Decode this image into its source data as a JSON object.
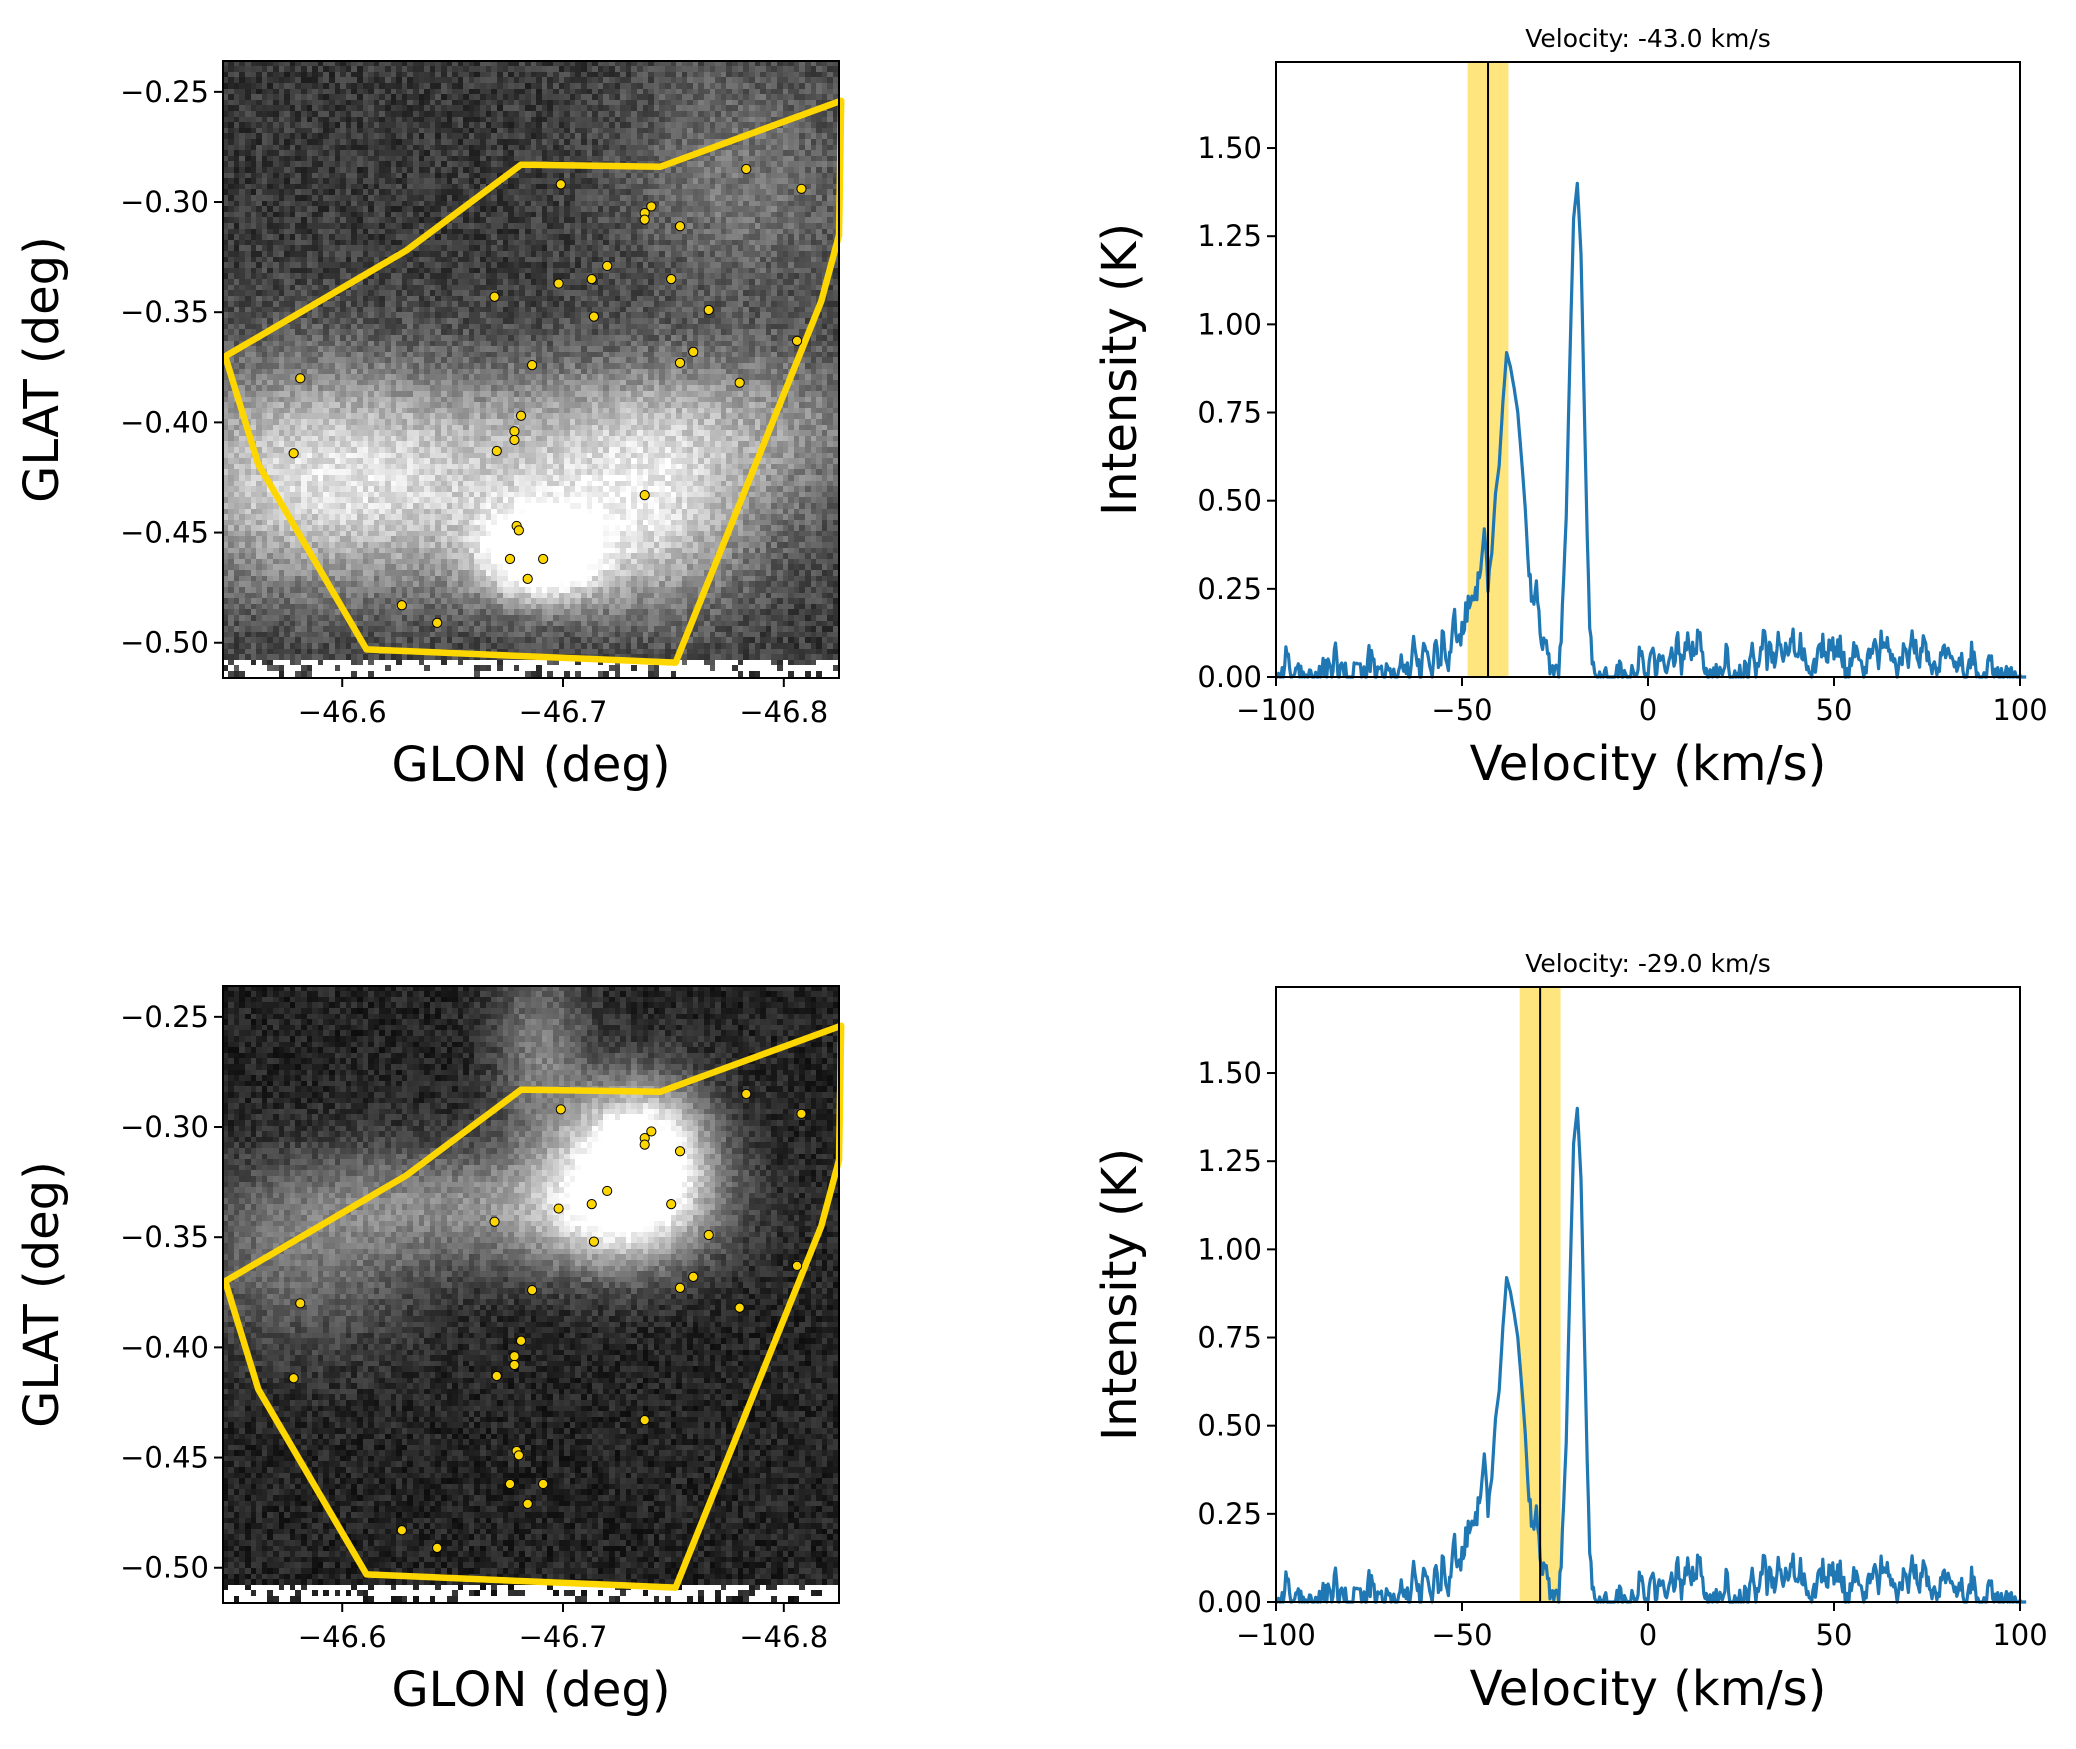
{
  "chart_data": [
    {
      "id": "map-top",
      "type": "heatmap",
      "colormap": "gray",
      "xlabel": "GLON (deg)",
      "ylabel": "GLAT (deg)",
      "xlim": [
        -46.546,
        -46.825
      ],
      "ylim": [
        -0.516,
        -0.236
      ],
      "xticks": [
        -46.6,
        -46.7,
        -46.8
      ],
      "xtick_labels": [
        "−46.6",
        "−46.7",
        "−46.8"
      ],
      "yticks": [
        -0.25,
        -0.3,
        -0.35,
        -0.4,
        -0.45,
        -0.5
      ],
      "ytick_labels": [
        "−0.25",
        "−0.30",
        "−0.35",
        "−0.40",
        "−0.45",
        "−0.50"
      ],
      "blank_below_glat": -0.508,
      "emission": [
        {
          "glon": -46.69,
          "glat": -0.46,
          "peak": 0.95,
          "sx": 0.018,
          "sy": 0.014
        },
        {
          "glon": -46.66,
          "glat": -0.43,
          "peak": 0.45,
          "sx": 0.09,
          "sy": 0.035
        },
        {
          "glon": -46.58,
          "glat": -0.42,
          "peak": 0.35,
          "sx": 0.05,
          "sy": 0.04
        },
        {
          "glon": -46.77,
          "glat": -0.4,
          "peak": 0.3,
          "sx": 0.06,
          "sy": 0.025
        },
        {
          "glon": -46.78,
          "glat": -0.29,
          "peak": 0.25,
          "sx": 0.04,
          "sy": 0.04
        },
        {
          "glon": -46.74,
          "glat": -0.45,
          "peak": 0.35,
          "sx": 0.03,
          "sy": 0.03
        }
      ],
      "noise_level": 0.22,
      "background_level": 0.22
    },
    {
      "id": "map-bottom",
      "type": "heatmap",
      "colormap": "gray",
      "xlabel": "GLON (deg)",
      "ylabel": "GLAT (deg)",
      "xlim": [
        -46.546,
        -46.825
      ],
      "ylim": [
        -0.516,
        -0.236
      ],
      "xticks": [
        -46.6,
        -46.7,
        -46.8
      ],
      "xtick_labels": [
        "−46.6",
        "−46.7",
        "−46.8"
      ],
      "yticks": [
        -0.25,
        -0.3,
        -0.35,
        -0.4,
        -0.45,
        -0.5
      ],
      "ytick_labels": [
        "−0.25",
        "−0.30",
        "−0.35",
        "−0.40",
        "−0.45",
        "−0.50"
      ],
      "blank_below_glat": -0.508,
      "emission": [
        {
          "glon": -46.735,
          "glat": -0.31,
          "peak": 1.0,
          "sx": 0.022,
          "sy": 0.022
        },
        {
          "glon": -46.725,
          "glat": -0.34,
          "peak": 0.6,
          "sx": 0.03,
          "sy": 0.02
        },
        {
          "glon": -46.65,
          "glat": -0.335,
          "peak": 0.35,
          "sx": 0.06,
          "sy": 0.02
        },
        {
          "glon": -46.58,
          "glat": -0.365,
          "peak": 0.25,
          "sx": 0.04,
          "sy": 0.03
        },
        {
          "glon": -46.69,
          "glat": -0.265,
          "peak": 0.35,
          "sx": 0.015,
          "sy": 0.03
        }
      ],
      "noise_level": 0.18,
      "background_level": 0.14
    },
    {
      "id": "spectrum-top",
      "type": "line",
      "title": "Velocity: -43.0 km/s",
      "xlabel": "Velocity (km/s)",
      "ylabel": "Intensity (K)",
      "xlim": [
        -100,
        100
      ],
      "ylim": [
        0,
        1.744
      ],
      "xticks": [
        -100,
        -50,
        0,
        50,
        100
      ],
      "xtick_labels": [
        "−100",
        "−50",
        "0",
        "50",
        "100"
      ],
      "yticks": [
        0,
        0.25,
        0.5,
        0.75,
        1.0,
        1.25,
        1.5
      ],
      "ytick_labels": [
        "0.00",
        "0.25",
        "0.50",
        "0.75",
        "1.00",
        "1.25",
        "1.50"
      ],
      "marker_velocity": -43.0,
      "band": [
        -48.5,
        -37.5
      ],
      "series_ref": "spectrum"
    },
    {
      "id": "spectrum-bottom",
      "type": "line",
      "title": "Velocity: -29.0 km/s",
      "xlabel": "Velocity (km/s)",
      "ylabel": "Intensity (K)",
      "xlim": [
        -100,
        100
      ],
      "ylim": [
        0,
        1.744
      ],
      "xticks": [
        -100,
        -50,
        0,
        50,
        100
      ],
      "xtick_labels": [
        "−100",
        "−50",
        "0",
        "50",
        "100"
      ],
      "yticks": [
        0,
        0.25,
        0.5,
        0.75,
        1.0,
        1.25,
        1.5
      ],
      "ytick_labels": [
        "0.00",
        "0.25",
        "0.50",
        "0.75",
        "1.00",
        "1.25",
        "1.50"
      ],
      "marker_velocity": -29.0,
      "band": [
        -34.5,
        -23.5
      ],
      "series_ref": "spectrum"
    }
  ],
  "spectrum": {
    "name": "spectrum",
    "velocity_start": -100,
    "velocity_step": 1,
    "intensity": [
      0.02,
      0.0,
      0.03,
      0.08,
      0.0,
      0.0,
      0.01,
      0.0,
      0.0,
      0.02,
      0.0,
      0.0,
      0.0,
      0.04,
      0.02,
      0.0,
      0.08,
      0.0,
      0.03,
      0.0,
      0.0,
      0.02,
      0.06,
      0.0,
      0.01,
      0.06,
      0.04,
      0.0,
      0.02,
      0.0,
      0.06,
      0.0,
      0.01,
      0.0,
      0.05,
      0.02,
      0.0,
      0.13,
      0.03,
      0.0,
      0.1,
      0.06,
      0.0,
      0.12,
      0.02,
      0.16,
      0.04,
      0.08,
      0.17,
      0.1,
      0.14,
      0.18,
      0.22,
      0.2,
      0.25,
      0.3,
      0.42,
      0.28,
      0.35,
      0.52,
      0.6,
      0.78,
      0.92,
      0.88,
      0.82,
      0.75,
      0.62,
      0.48,
      0.28,
      0.22,
      0.26,
      0.14,
      0.08,
      0.1,
      0.02,
      0.05,
      0.0,
      0.2,
      0.45,
      0.9,
      1.3,
      1.4,
      1.2,
      0.7,
      0.25,
      0.02,
      0.0,
      0.0,
      0.01,
      0.0,
      0.02,
      0.0,
      0.03,
      0.0,
      0.04,
      0.0,
      0.02,
      0.0,
      0.09,
      0.04,
      0.0,
      0.1,
      0.03,
      0.05,
      0.09,
      0.0,
      0.07,
      0.03,
      0.1,
      0.04,
      0.08,
      0.12,
      0.07,
      0.1,
      0.14,
      0.05,
      0.02,
      0.0,
      0.04,
      0.03,
      0.0,
      0.1,
      0.02,
      0.0,
      0.01,
      0.0,
      0.03,
      0.0,
      0.07,
      0.02,
      0.04,
      0.14,
      0.06,
      0.09,
      0.05,
      0.12,
      0.04,
      0.1,
      0.08,
      0.11,
      0.06,
      0.1,
      0.07,
      0.03,
      0.0,
      0.04,
      0.08,
      0.09,
      0.05,
      0.12,
      0.06,
      0.1,
      0.09,
      0.02,
      0.0,
      0.08,
      0.06,
      0.04,
      0.0,
      0.05,
      0.08,
      0.1,
      0.06,
      0.12,
      0.09,
      0.07,
      0.04,
      0.0,
      0.05,
      0.09,
      0.06,
      0.11,
      0.08,
      0.04,
      0.12,
      0.07,
      0.03,
      0.05,
      0.0,
      0.08,
      0.06,
      0.1,
      0.04,
      0.02,
      0.06,
      0.0,
      0.03,
      0.08,
      0.05,
      0.0,
      0.02,
      0.0,
      0.06,
      0.01,
      0.0,
      0.02,
      0.0,
      0.0,
      0.01,
      0.0,
      0.0,
      0.0
    ]
  },
  "sources": [
    {
      "glon": -46.699,
      "glat": -0.292
    },
    {
      "glon": -46.783,
      "glat": -0.285
    },
    {
      "glon": -46.808,
      "glat": -0.294
    },
    {
      "glon": -46.74,
      "glat": -0.302
    },
    {
      "glon": -46.737,
      "glat": -0.305
    },
    {
      "glon": -46.737,
      "glat": -0.308
    },
    {
      "glon": -46.753,
      "glat": -0.311
    },
    {
      "glon": -46.72,
      "glat": -0.329
    },
    {
      "glon": -46.713,
      "glat": -0.335
    },
    {
      "glon": -46.698,
      "glat": -0.337
    },
    {
      "glon": -46.749,
      "glat": -0.335
    },
    {
      "glon": -46.669,
      "glat": -0.343
    },
    {
      "glon": -46.714,
      "glat": -0.352
    },
    {
      "glon": -46.766,
      "glat": -0.349
    },
    {
      "glon": -46.806,
      "glat": -0.363
    },
    {
      "glon": -46.759,
      "glat": -0.368
    },
    {
      "glon": -46.753,
      "glat": -0.373
    },
    {
      "glon": -46.686,
      "glat": -0.374
    },
    {
      "glon": -46.581,
      "glat": -0.38
    },
    {
      "glon": -46.78,
      "glat": -0.382
    },
    {
      "glon": -46.681,
      "glat": -0.397
    },
    {
      "glon": -46.678,
      "glat": -0.404
    },
    {
      "glon": -46.678,
      "glat": -0.408
    },
    {
      "glon": -46.67,
      "glat": -0.413
    },
    {
      "glon": -46.578,
      "glat": -0.414
    },
    {
      "glon": -46.737,
      "glat": -0.433
    },
    {
      "glon": -46.679,
      "glat": -0.447
    },
    {
      "glon": -46.68,
      "glat": -0.449
    },
    {
      "glon": -46.676,
      "glat": -0.462
    },
    {
      "glon": -46.691,
      "glat": -0.462
    },
    {
      "glon": -46.684,
      "glat": -0.471
    },
    {
      "glon": -46.627,
      "glat": -0.483
    },
    {
      "glon": -46.643,
      "glat": -0.491
    }
  ],
  "region_polygon": [
    {
      "glon": -46.547,
      "glat": -0.37
    },
    {
      "glon": -46.562,
      "glat": -0.419
    },
    {
      "glon": -46.611,
      "glat": -0.503
    },
    {
      "glon": -46.751,
      "glat": -0.509
    },
    {
      "glon": -46.817,
      "glat": -0.345
    },
    {
      "glon": -46.825,
      "glat": -0.315
    },
    {
      "glon": -46.826,
      "glat": -0.254
    },
    {
      "glon": -46.744,
      "glat": -0.284
    },
    {
      "glon": -46.681,
      "glat": -0.283
    },
    {
      "glon": -46.629,
      "glat": -0.322
    }
  ],
  "colors": {
    "polygon": "#FFD700",
    "source_fill": "#FFD700",
    "source_edge": "#000000",
    "spectrum_line": "#1f77b4",
    "band": "#FFE066",
    "marker_line": "#000000"
  }
}
